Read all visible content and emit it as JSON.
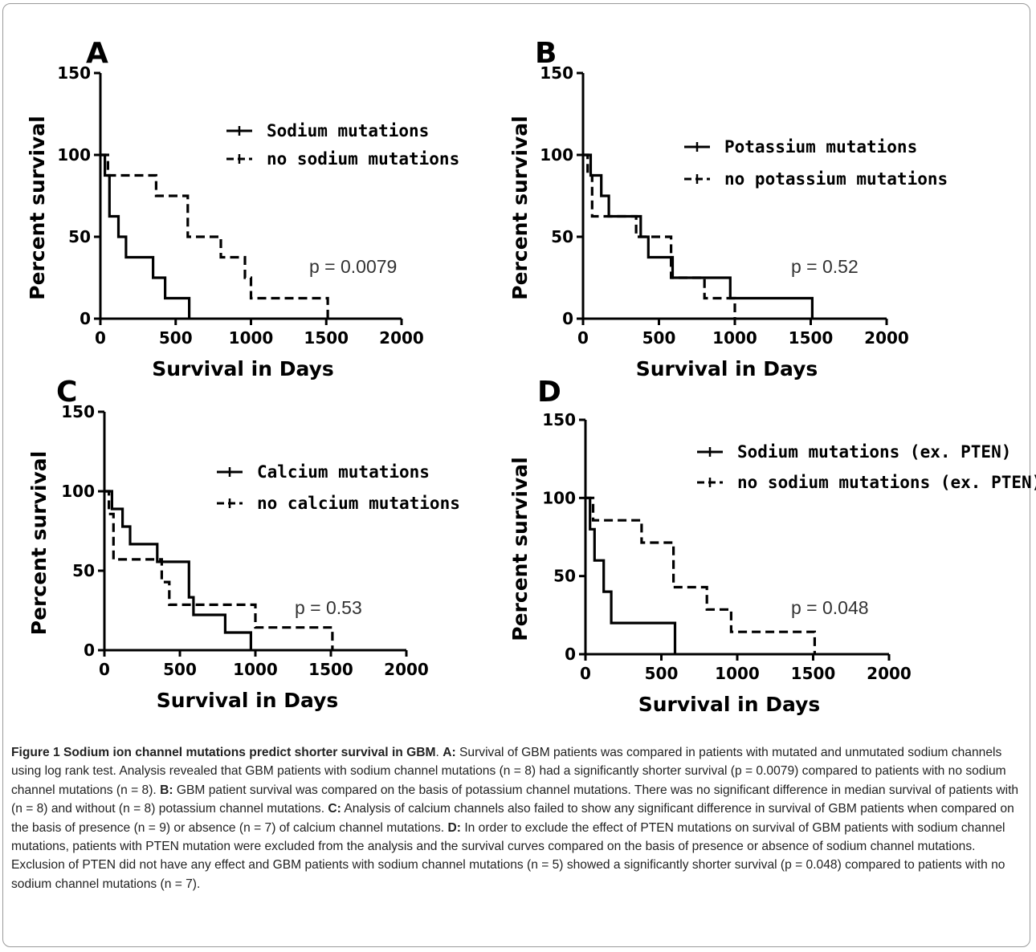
{
  "chart_data": [
    {
      "type": "line",
      "panel": "A",
      "xlabel": "Survival in Days",
      "ylabel": "Percent survival",
      "xlim": [
        0,
        2000
      ],
      "ylim": [
        0,
        150
      ],
      "xticks": [
        0,
        500,
        1000,
        1500,
        2000
      ],
      "yticks": [
        0,
        50,
        100,
        150
      ],
      "annotation": "p = 0.0079",
      "series": [
        {
          "name": "Sodium mutations",
          "style": "solid",
          "x": [
            0,
            30,
            30,
            60,
            60,
            120,
            120,
            170,
            170,
            350,
            350,
            430,
            430,
            590,
            590
          ],
          "y": [
            100,
            100,
            87.5,
            87.5,
            62.5,
            62.5,
            50,
            50,
            37.5,
            37.5,
            25,
            25,
            12.5,
            12.5,
            0
          ]
        },
        {
          "name": "no sodium mutations",
          "style": "dashed",
          "x": [
            0,
            50,
            50,
            370,
            370,
            580,
            580,
            800,
            800,
            960,
            960,
            1000,
            1000,
            1510,
            1510
          ],
          "y": [
            100,
            100,
            87.5,
            87.5,
            75,
            75,
            50,
            50,
            37.5,
            37.5,
            25,
            25,
            12.5,
            12.5,
            0
          ]
        }
      ]
    },
    {
      "type": "line",
      "panel": "B",
      "xlabel": "Survival in Days",
      "ylabel": "Percent survival",
      "xlim": [
        0,
        2000
      ],
      "ylim": [
        0,
        150
      ],
      "xticks": [
        0,
        500,
        1000,
        1500,
        2000
      ],
      "yticks": [
        0,
        50,
        100,
        150
      ],
      "annotation": "p = 0.52",
      "series": [
        {
          "name": "Potassium mutations",
          "style": "solid",
          "x": [
            0,
            50,
            50,
            120,
            120,
            170,
            170,
            380,
            380,
            430,
            430,
            590,
            590,
            970,
            970,
            1510,
            1510
          ],
          "y": [
            100,
            100,
            87.5,
            87.5,
            75,
            75,
            62.5,
            62.5,
            50,
            50,
            37.5,
            37.5,
            25,
            25,
            12.5,
            12.5,
            0
          ]
        },
        {
          "name": "no potassium mutations",
          "style": "dashed",
          "x": [
            0,
            30,
            30,
            60,
            60,
            350,
            350,
            420,
            420,
            580,
            580,
            800,
            800,
            1000,
            1000
          ],
          "y": [
            100,
            100,
            87.5,
            87.5,
            62.5,
            62.5,
            50,
            50,
            50,
            50,
            25,
            25,
            12.5,
            12.5,
            0
          ]
        }
      ]
    },
    {
      "type": "line",
      "panel": "C",
      "xlabel": "Survival in Days",
      "ylabel": "Percent survival",
      "xlim": [
        0,
        2000
      ],
      "ylim": [
        0,
        150
      ],
      "xticks": [
        0,
        500,
        1000,
        1500,
        2000
      ],
      "yticks": [
        0,
        50,
        100,
        150
      ],
      "annotation": "p = 0.53",
      "series": [
        {
          "name": "Calcium mutations",
          "style": "solid",
          "x": [
            0,
            50,
            50,
            120,
            120,
            170,
            170,
            350,
            350,
            560,
            560,
            590,
            590,
            800,
            800,
            970,
            970
          ],
          "y": [
            100,
            100,
            88.9,
            88.9,
            77.8,
            77.8,
            66.7,
            66.7,
            55.6,
            55.6,
            33.3,
            33.3,
            22.2,
            22.2,
            11.1,
            11.1,
            0
          ]
        },
        {
          "name": "no calcium mutations",
          "style": "dashed",
          "x": [
            0,
            30,
            30,
            60,
            60,
            380,
            380,
            430,
            430,
            1000,
            1000,
            1510,
            1510
          ],
          "y": [
            100,
            100,
            85.7,
            85.7,
            57.1,
            57.1,
            42.9,
            42.9,
            28.6,
            28.6,
            14.3,
            14.3,
            0
          ]
        }
      ]
    },
    {
      "type": "line",
      "panel": "D",
      "xlabel": "Survival in Days",
      "ylabel": "Percent survival",
      "xlim": [
        0,
        2000
      ],
      "ylim": [
        0,
        150
      ],
      "xticks": [
        0,
        500,
        1000,
        1500,
        2000
      ],
      "yticks": [
        0,
        50,
        100,
        150
      ],
      "annotation": "p = 0.048",
      "series": [
        {
          "name": "Sodium mutations (ex. PTEN)",
          "style": "solid",
          "x": [
            0,
            30,
            30,
            60,
            60,
            120,
            120,
            170,
            170,
            590,
            590
          ],
          "y": [
            100,
            100,
            80,
            80,
            60,
            60,
            40,
            40,
            20,
            20,
            0
          ]
        },
        {
          "name": "no sodium mutations (ex. PTEN)",
          "style": "dashed",
          "x": [
            0,
            50,
            50,
            370,
            370,
            580,
            580,
            800,
            800,
            960,
            960,
            1510,
            1510
          ],
          "y": [
            100,
            100,
            85.7,
            85.7,
            71.4,
            71.4,
            42.9,
            42.9,
            28.6,
            28.6,
            14.3,
            14.3,
            0
          ]
        }
      ]
    }
  ],
  "caption": {
    "title": "Figure 1 Sodium ion channel mutations predict shorter survival in GBM",
    "a_label": "A:",
    "a_text": "Survival of GBM patients was compared in patients with mutated and unmutated sodium channels using log rank test. Analysis revealed that GBM patients with sodium channel mutations (n = 8) had a significantly shorter survival (p = 0.0079) compared to patients with no sodium channel mutations (n = 8).",
    "b_label": "B:",
    "b_text": "GBM patient survival was compared on the basis of potassium channel mutations. There was no significant difference in median survival of patients with (n = 8) and without (n = 8) potassium channel mutations.",
    "c_label": "C:",
    "c_text": "Analysis of calcium channels also failed to show any significant difference in survival of GBM patients when compared on the basis of presence (n = 9) or absence (n = 7) of calcium channel mutations.",
    "d_label": "D:",
    "d_text": "In order to exclude the effect of PTEN mutations on survival of GBM patients with sodium channel mutations, patients with PTEN mutation were excluded from the analysis and the survival curves compared on the basis of presence or absence of sodium channel mutations. Exclusion of PTEN did not have any effect and GBM patients with sodium channel mutations (n = 5) showed a significantly shorter survival (p = 0.048) compared to patients with no sodium channel mutations (n = 7)."
  }
}
